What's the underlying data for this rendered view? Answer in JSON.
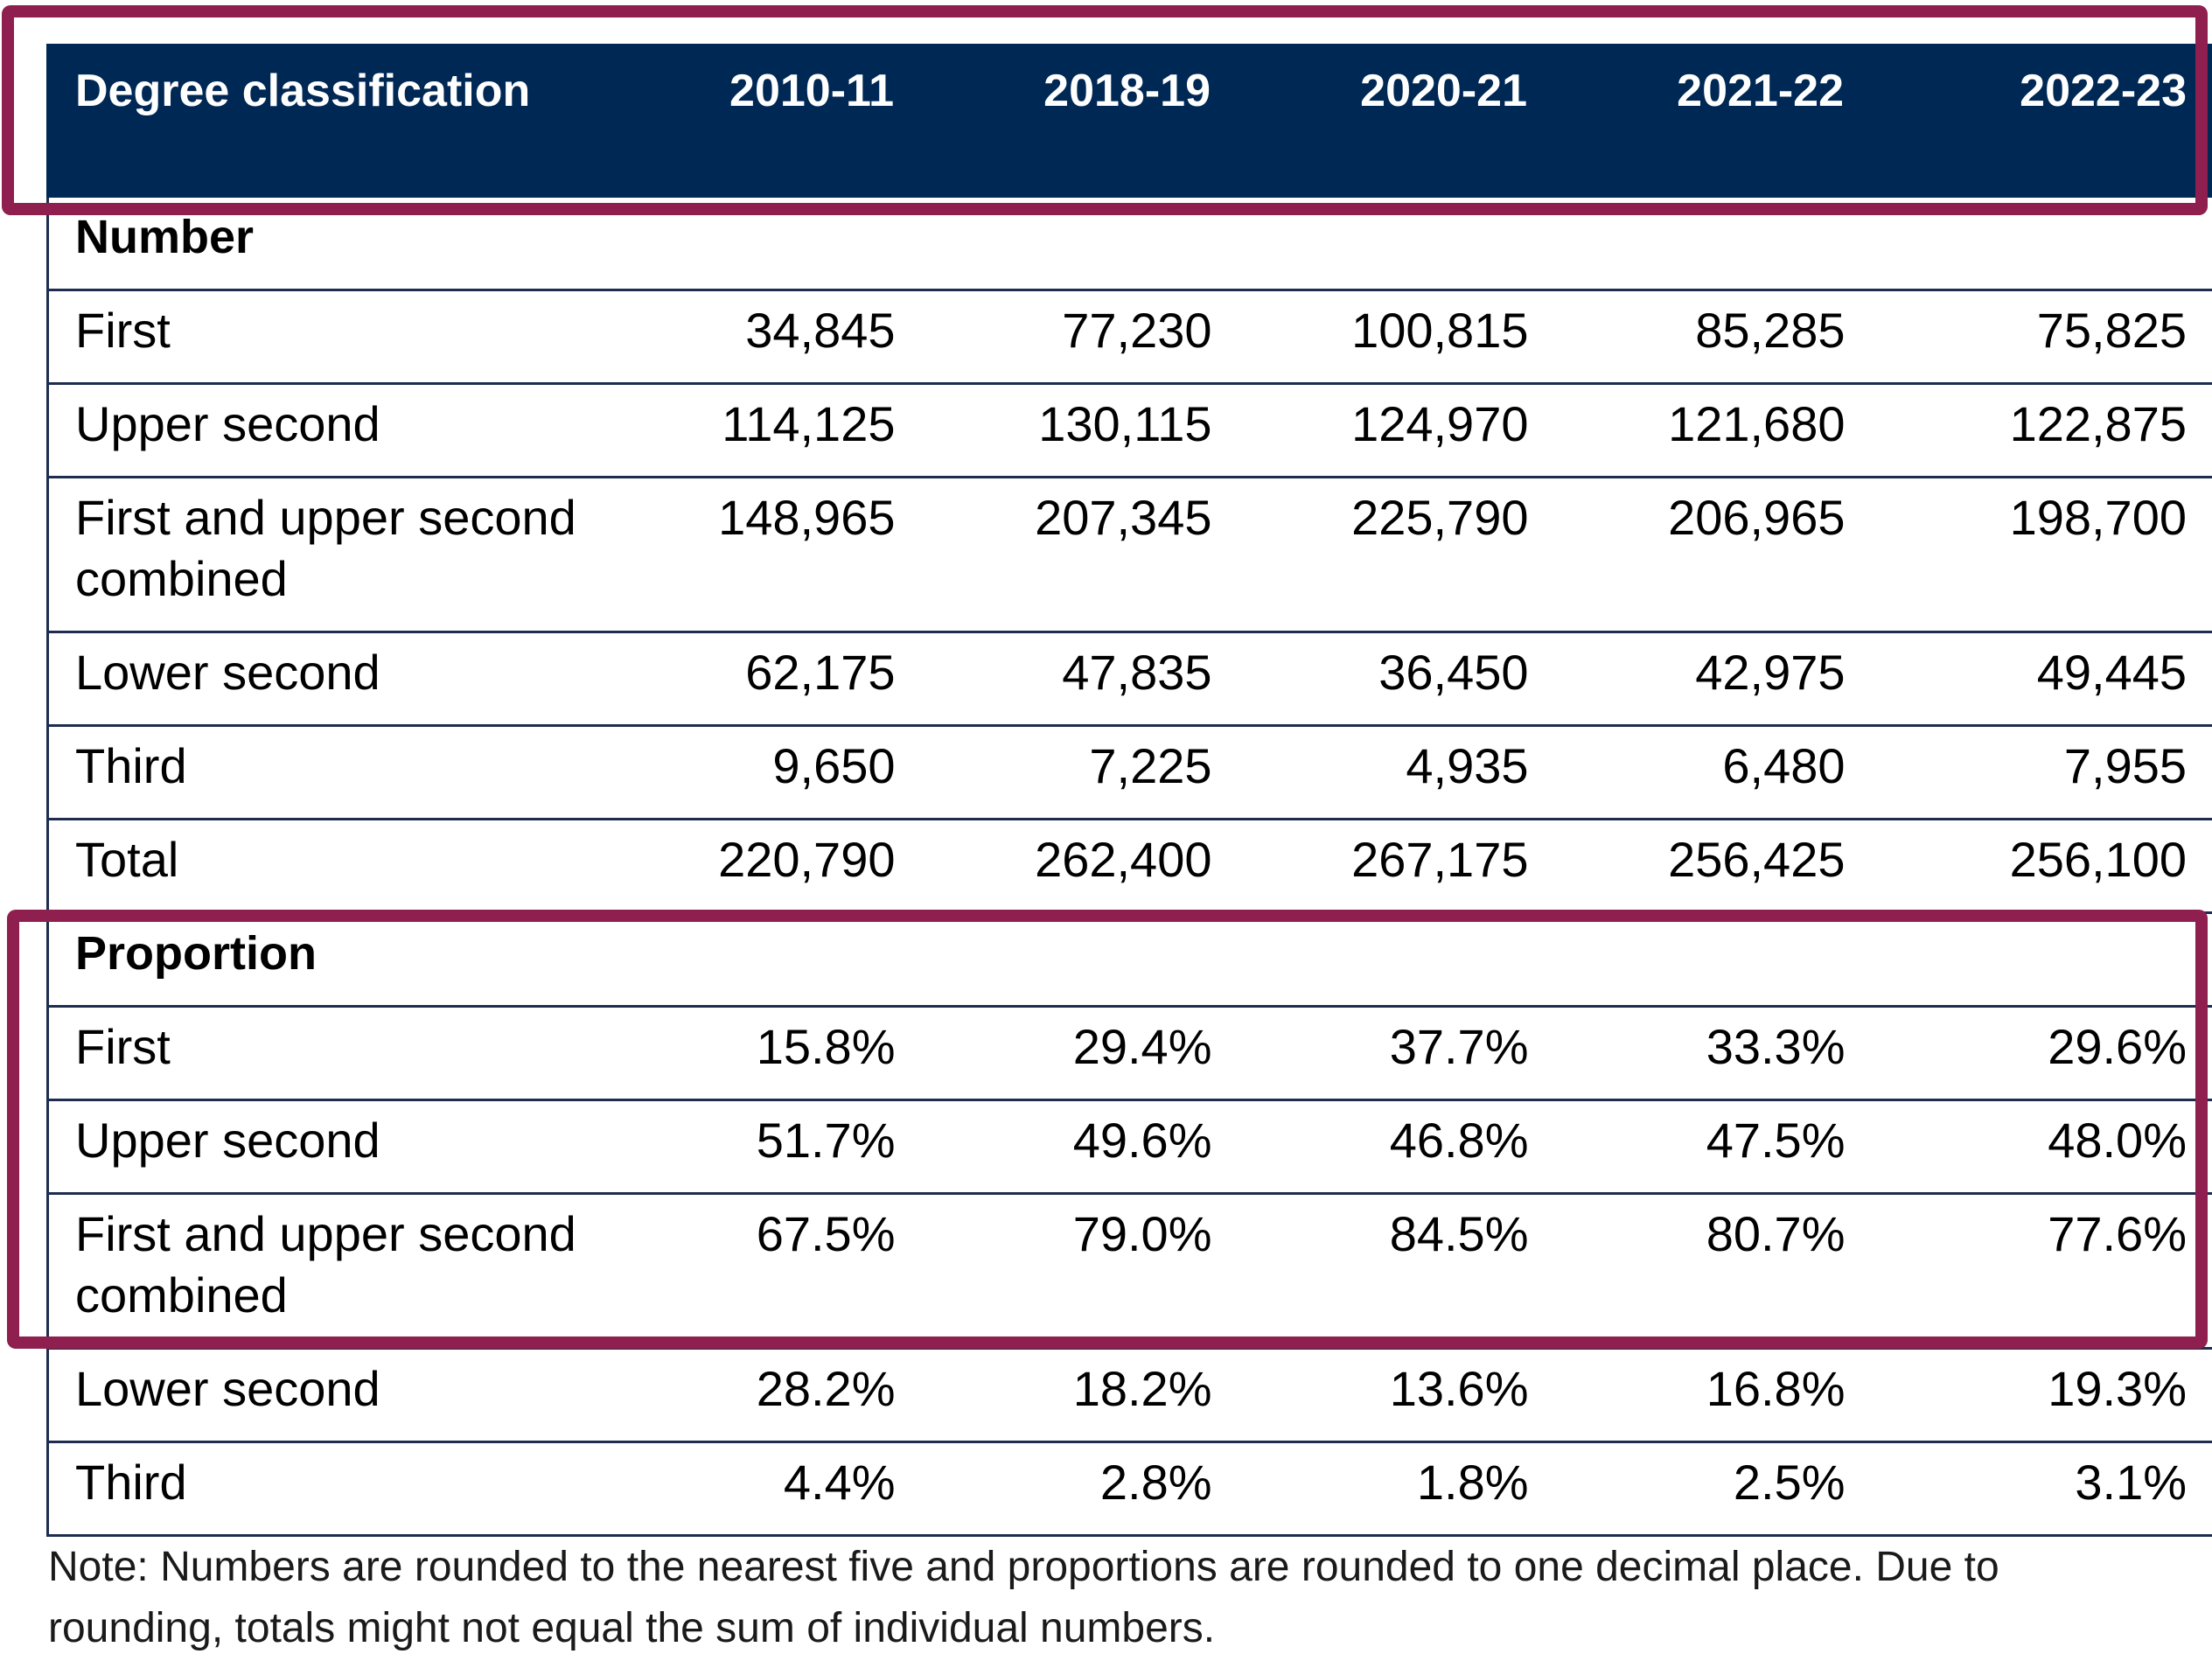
{
  "table": {
    "headers": [
      "Degree classification",
      "2010-11",
      "2018-19",
      "2020-21",
      "2021-22",
      "2022-23"
    ],
    "sections": [
      {
        "title": "Number",
        "rows": [
          {
            "label": "First",
            "values": [
              "34,845",
              "77,230",
              "100,815",
              "85,285",
              "75,825"
            ]
          },
          {
            "label": "Upper second",
            "values": [
              "114,125",
              "130,115",
              "124,970",
              "121,680",
              "122,875"
            ]
          },
          {
            "label": "First and upper second combined",
            "values": [
              "148,965",
              "207,345",
              "225,790",
              "206,965",
              "198,700"
            ]
          },
          {
            "label": "Lower second",
            "values": [
              "62,175",
              "47,835",
              "36,450",
              "42,975",
              "49,445"
            ]
          },
          {
            "label": "Third",
            "values": [
              "9,650",
              "7,225",
              "4,935",
              "6,480",
              "7,955"
            ]
          },
          {
            "label": "Total",
            "values": [
              "220,790",
              "262,400",
              "267,175",
              "256,425",
              "256,100"
            ]
          }
        ]
      },
      {
        "title": "Proportion",
        "rows": [
          {
            "label": "First",
            "values": [
              "15.8%",
              "29.4%",
              "37.7%",
              "33.3%",
              "29.6%"
            ]
          },
          {
            "label": "Upper second",
            "values": [
              "51.7%",
              "49.6%",
              "46.8%",
              "47.5%",
              "48.0%"
            ]
          },
          {
            "label": "First and upper second combined",
            "values": [
              "67.5%",
              "79.0%",
              "84.5%",
              "80.7%",
              "77.6%"
            ]
          },
          {
            "label": "Lower second",
            "values": [
              "28.2%",
              "18.2%",
              "13.6%",
              "16.8%",
              "19.3%"
            ]
          },
          {
            "label": "Third",
            "values": [
              "4.4%",
              "2.8%",
              "1.8%",
              "2.5%",
              "3.1%"
            ]
          }
        ]
      }
    ]
  },
  "note": "Note: Numbers are rounded to the nearest five and proportions are rounded to one decimal place. Due to rounding, totals might not equal the sum of individual numbers.",
  "colors": {
    "header_background": "#002855",
    "highlight_border": "#8e1f4e"
  }
}
